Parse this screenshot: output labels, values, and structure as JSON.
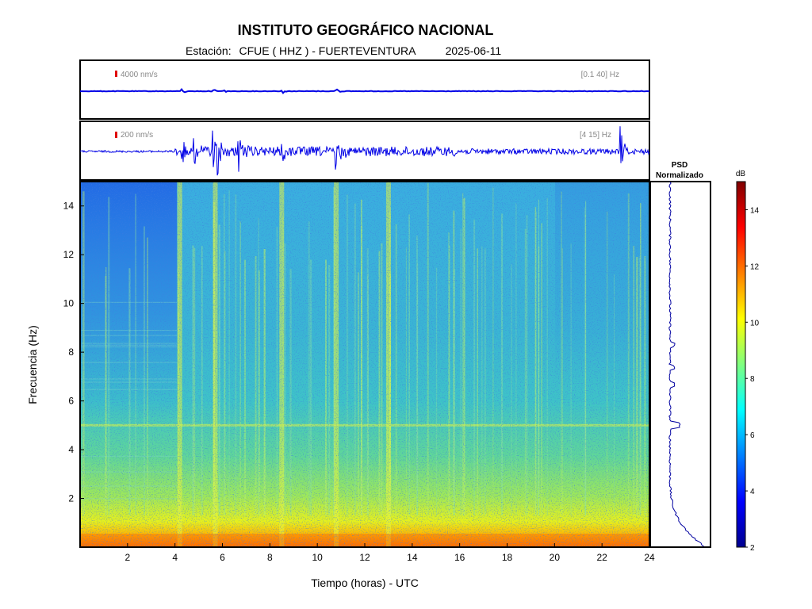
{
  "header": {
    "title": "INSTITUTO GEOGRÁFICO NACIONAL",
    "station_label": "Estación:",
    "station": "CFUE ( HHZ ) - FUERTEVENTURA",
    "date": "2025-06-11"
  },
  "chart_data": [
    {
      "type": "line",
      "name": "seismogram-broadband",
      "scale_label": "4000 nm/s",
      "filter_label": "[0.1 40] Hz",
      "x": [
        0,
        24
      ],
      "events_hours": [
        4.3,
        5.6,
        6.0,
        8.5,
        10.8
      ]
    },
    {
      "type": "line",
      "name": "seismogram-filtered",
      "scale_label": "200 nm/s",
      "filter_label": "[4 15] Hz",
      "x": [
        0,
        24
      ],
      "events_hours": [
        4.3,
        4.8,
        5.6,
        5.8,
        6.7,
        8.5,
        10.8,
        22.8
      ]
    },
    {
      "type": "heatmap",
      "name": "spectrogram",
      "xlabel": "Tiempo (horas) - UTC",
      "ylabel": "Frecuencia  (Hz)",
      "xlim": [
        0,
        24
      ],
      "ylim": [
        0,
        15
      ],
      "xticks": [
        "2",
        "4",
        "6",
        "8",
        "10",
        "12",
        "14",
        "16",
        "18",
        "20",
        "22",
        "24"
      ],
      "yticks": [
        "2",
        "4",
        "6",
        "8",
        "10",
        "12",
        "14"
      ],
      "colormap": "jet",
      "bright_bands_hours": [
        4.2,
        5.7,
        8.5,
        10.8,
        13.0
      ],
      "constant_line_hz": 5.0
    },
    {
      "type": "line",
      "name": "psd",
      "title_line1": "PSD",
      "title_line2": "Normalizado"
    },
    {
      "type": "colorbar",
      "label": "dB",
      "range": [
        2,
        15
      ],
      "ticks": [
        "2",
        "4",
        "6",
        "8",
        "10",
        "12",
        "14"
      ]
    }
  ]
}
